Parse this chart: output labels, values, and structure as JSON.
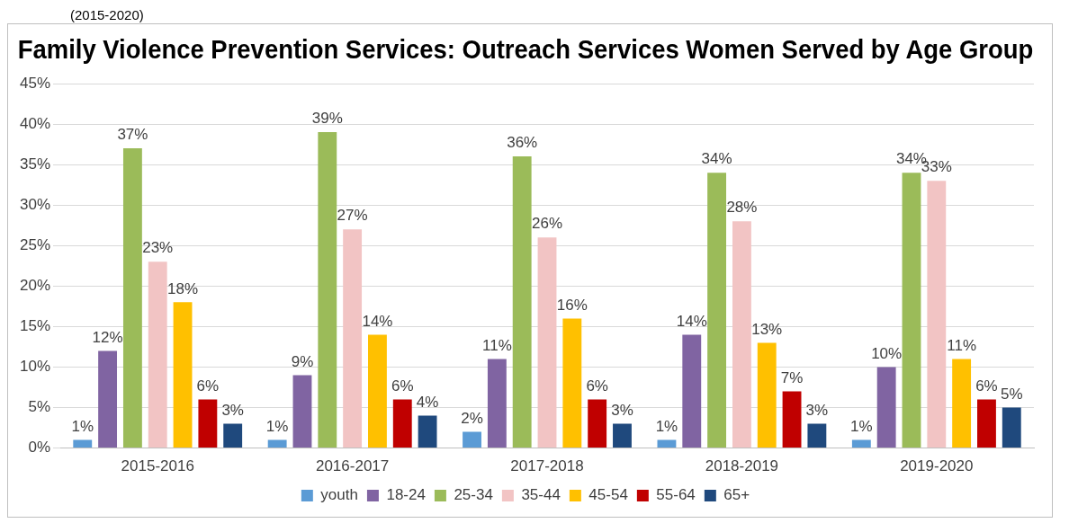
{
  "chart_data": {
    "type": "bar",
    "title": "Family Violence Prevention Services: Outreach Services Women Served by Age Group",
    "annotations": [
      "(2015-2020)"
    ],
    "categories": [
      "2015-2016",
      "2016-2017",
      "2017-2018",
      "2018-2019",
      "2019-2020"
    ],
    "series": [
      {
        "name": "youth",
        "color": "#5b9bd5",
        "values": [
          1,
          1,
          2,
          1,
          1
        ],
        "value_labels": [
          "1%",
          "1%",
          "2%",
          "1%",
          "1%"
        ]
      },
      {
        "name": "18-24",
        "color": "#8064a2",
        "values": [
          12,
          9,
          11,
          14,
          10
        ],
        "value_labels": [
          "12%",
          "9%",
          "11%",
          "14%",
          "10%"
        ]
      },
      {
        "name": "25-34",
        "color": "#9bbb59",
        "values": [
          37,
          39,
          36,
          34,
          34
        ],
        "value_labels": [
          "37%",
          "39%",
          "36%",
          "34%",
          "34%"
        ]
      },
      {
        "name": "35-44",
        "color": "#f2c4c4",
        "values": [
          23,
          27,
          26,
          28,
          33
        ],
        "value_labels": [
          "23%",
          "27%",
          "26%",
          "28%",
          "33%"
        ]
      },
      {
        "name": "45-54",
        "color": "#ffc000",
        "values": [
          18,
          14,
          16,
          13,
          11
        ],
        "value_labels": [
          "18%",
          "14%",
          "16%",
          "13%",
          "11%"
        ]
      },
      {
        "name": "55-64",
        "color": "#c00000",
        "values": [
          6,
          6,
          6,
          7,
          6
        ],
        "value_labels": [
          "6%",
          "6%",
          "6%",
          "7%",
          "6%"
        ]
      },
      {
        "name": "65+",
        "color": "#1f497d",
        "values": [
          3,
          4,
          3,
          3,
          5
        ],
        "value_labels": [
          "3%",
          "4%",
          "3%",
          "3%",
          "5%"
        ]
      }
    ],
    "ylim": [
      0,
      45
    ],
    "yticks": [
      {
        "value": 0,
        "label": "0%"
      },
      {
        "value": 5,
        "label": "5%"
      },
      {
        "value": 10,
        "label": "10%"
      },
      {
        "value": 15,
        "label": "15%"
      },
      {
        "value": 20,
        "label": "20%"
      },
      {
        "value": 25,
        "label": "25%"
      },
      {
        "value": 30,
        "label": "30%"
      },
      {
        "value": 35,
        "label": "35%"
      },
      {
        "value": 40,
        "label": "40%"
      },
      {
        "value": 45,
        "label": "45%"
      }
    ],
    "grid": "y",
    "legend": "bottom"
  }
}
